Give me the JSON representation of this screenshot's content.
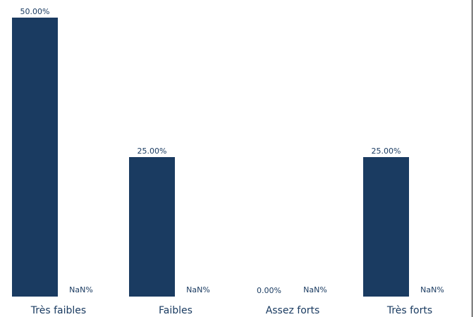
{
  "chart_data": {
    "type": "bar",
    "categories": [
      "Très faibles",
      "Faibles",
      "Assez forts",
      "Très forts"
    ],
    "series": [
      {
        "values": [
          50,
          25,
          0,
          25
        ],
        "labels": [
          "50.00%",
          "25.00%",
          "0.00%",
          "25.00%"
        ]
      },
      {
        "values": [
          null,
          null,
          null,
          null
        ],
        "labels": [
          "NaN%",
          "NaN%",
          "NaN%",
          "NaN%"
        ]
      }
    ],
    "ylim": [
      0,
      50
    ],
    "grid": false,
    "colors": {
      "bar": "#1a3b61",
      "text": "#1a3b61"
    }
  }
}
